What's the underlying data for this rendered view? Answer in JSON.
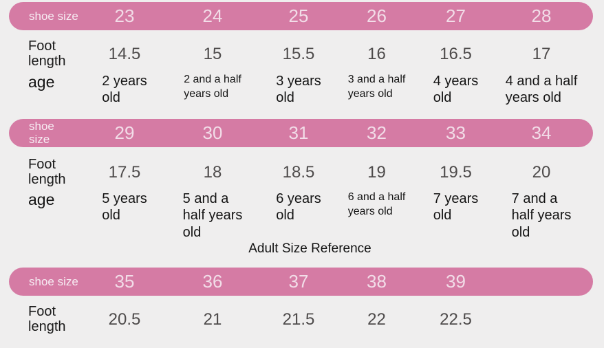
{
  "page": {
    "background_color": "#efeeee",
    "accent_color": "#d57ba4",
    "bar_label_color": "#f7ecf3",
    "bar_number_color": "#f2dde8",
    "foot_value_color": "#4e4b4b",
    "text_color": "#161616"
  },
  "adult_reference": {
    "title": "Adult Size Reference"
  },
  "sections": [
    {
      "shoe_size_label": "shoe size",
      "sizes": [
        "23",
        "24",
        "25",
        "26",
        "27",
        "28"
      ],
      "foot_label": "Foot\nlength",
      "foot_lengths": [
        "14.5",
        "15",
        "15.5",
        "16",
        "16.5",
        "17"
      ],
      "age_label": "age",
      "ages": [
        "2 years\nold",
        "2 and a half\nyears old",
        "3 years\nold",
        "3 and a half\nyears old",
        "4 years\nold",
        "4 and a half\nyears old"
      ]
    },
    {
      "shoe_size_label": "shoe\nsize",
      "sizes": [
        "29",
        "30",
        "31",
        "32",
        "33",
        "34"
      ],
      "foot_label": "Foot\nlength",
      "foot_lengths": [
        "17.5",
        "18",
        "18.5",
        "19",
        "19.5",
        "20"
      ],
      "age_label": "age",
      "ages": [
        "5 years\nold",
        "5 and a\nhalf years\nold",
        "6 years\nold",
        "6 and a half\nyears old",
        "7 years\nold",
        "7 and a\nhalf years\nold"
      ]
    },
    {
      "shoe_size_label": "shoe size",
      "sizes": [
        "35",
        "36",
        "37",
        "38",
        "39"
      ],
      "foot_label": "Foot\nlength",
      "foot_lengths": [
        "20.5",
        "21",
        "21.5",
        "22",
        "22.5"
      ]
    }
  ],
  "chart_data": [
    {
      "type": "table",
      "title": "Kids size reference (23-28)",
      "columns": [
        "shoe size",
        "23",
        "24",
        "25",
        "26",
        "27",
        "28"
      ],
      "rows": [
        [
          "Foot length",
          "14.5",
          "15",
          "15.5",
          "16",
          "16.5",
          "17"
        ],
        [
          "age",
          "2 years old",
          "2 and a half years old",
          "3 years old",
          "3 and a half years old",
          "4 years old",
          "4 and a half years old"
        ]
      ]
    },
    {
      "type": "table",
      "title": "Kids size reference (29-34)",
      "columns": [
        "shoe size",
        "29",
        "30",
        "31",
        "32",
        "33",
        "34"
      ],
      "rows": [
        [
          "Foot length",
          "17.5",
          "18",
          "18.5",
          "19",
          "19.5",
          "20"
        ],
        [
          "age",
          "5 years old",
          "5 and a half years old",
          "6 years old",
          "6 and a half years old",
          "7 years old",
          "7 and a half years old"
        ]
      ]
    },
    {
      "type": "table",
      "title": "Adult Size Reference",
      "columns": [
        "shoe size",
        "35",
        "36",
        "37",
        "38",
        "39"
      ],
      "rows": [
        [
          "Foot length",
          "20.5",
          "21",
          "21.5",
          "22",
          "22.5"
        ]
      ]
    }
  ]
}
